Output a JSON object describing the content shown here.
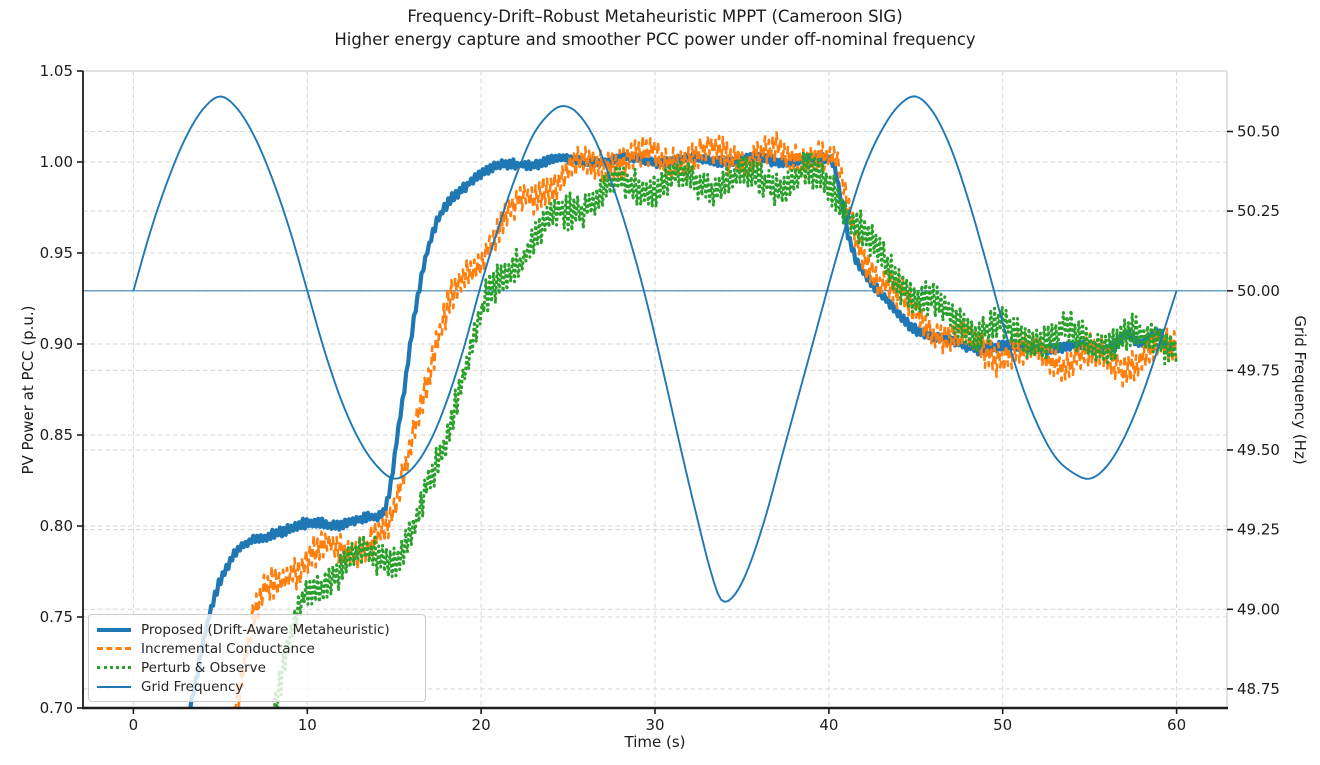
{
  "title": "Frequency-Drift–Robust Metaheuristic MPPT (Cameroon SIG)",
  "subtitle": "Higher energy capture and smoother PCC power under off-nominal frequency",
  "xlabel": "Time (s)",
  "colors": {
    "proposed": "#1f77b4",
    "incremental_conductance": "#ff7f0e",
    "perturb_observe": "#2ca02c",
    "grid_frequency": "#1f77b4",
    "gridline": "#d9d9d9",
    "spine_dark": "#1c1c1c",
    "spine_light": "#cfcfcf",
    "text": "#1c1c1c"
  },
  "chart_data": {
    "type": "line",
    "title": "Frequency-Drift–Robust Metaheuristic MPPT (Cameroon SIG)",
    "subtitle": "Higher energy capture and smoother PCC power under off-nominal frequency",
    "xlabel": "Time (s)",
    "grid": true,
    "legend_position": "lower left",
    "xlim": [
      -2.9,
      62.9
    ],
    "x_ticks": [
      0,
      10,
      20,
      30,
      40,
      50,
      60
    ],
    "x_tick_labels": [
      "0",
      "10",
      "20",
      "30",
      "40",
      "50",
      "60"
    ],
    "left_axis": {
      "label": "PV Power at PCC (p.u.)",
      "lim": [
        0.7,
        1.05
      ],
      "ticks": [
        0.7,
        0.75,
        0.8,
        0.85,
        0.9,
        0.95,
        1.0,
        1.05
      ],
      "tick_labels": [
        "0.70",
        "0.75",
        "0.80",
        "0.85",
        "0.90",
        "0.95",
        "1.00",
        "1.05"
      ]
    },
    "right_axis": {
      "label": "Grid Frequency (Hz)",
      "lim": [
        48.69,
        50.69
      ],
      "ticks": [
        48.75,
        49.0,
        49.25,
        49.5,
        49.75,
        50.0,
        50.25,
        50.5
      ],
      "tick_labels": [
        "48.75",
        "49.00",
        "49.25",
        "49.50",
        "49.75",
        "50.00",
        "50.25",
        "50.50"
      ]
    },
    "reference_line": {
      "axis": "right",
      "value": 50.0,
      "color": "#1f77b4",
      "width": 1.1,
      "opacity": 0.85
    },
    "series": [
      {
        "name": "Proposed (Drift-Aware Metaheuristic)",
        "color": "#1f77b4",
        "style": "solid",
        "width": 4.2,
        "axis": "left",
        "noise_amp": 0.0025,
        "seed": 11,
        "sample_dt": 0.11,
        "points": [
          [
            2.6,
            0.672
          ],
          [
            3.0,
            0.69
          ],
          [
            3.4,
            0.706
          ],
          [
            3.8,
            0.726
          ],
          [
            4.3,
            0.75
          ],
          [
            4.8,
            0.766
          ],
          [
            5.3,
            0.776
          ],
          [
            5.9,
            0.7845
          ],
          [
            6.6,
            0.79
          ],
          [
            7.4,
            0.794
          ],
          [
            8.2,
            0.797
          ],
          [
            9.2,
            0.799
          ],
          [
            10.5,
            0.8008
          ],
          [
            12,
            0.8022
          ],
          [
            13.5,
            0.8035
          ],
          [
            14.3,
            0.806
          ],
          [
            14.7,
            0.818
          ],
          [
            15.1,
            0.845
          ],
          [
            15.6,
            0.878
          ],
          [
            16.1,
            0.912
          ],
          [
            16.6,
            0.938
          ],
          [
            17.1,
            0.956
          ],
          [
            17.7,
            0.971
          ],
          [
            18.3,
            0.98
          ],
          [
            19,
            0.9872
          ],
          [
            19.8,
            0.9925
          ],
          [
            20.7,
            0.996
          ],
          [
            21.7,
            0.9985
          ],
          [
            23,
            1.0
          ],
          [
            25,
            1.0008
          ],
          [
            28,
            1.001
          ],
          [
            31,
            1.001
          ],
          [
            34,
            1.0012
          ],
          [
            37,
            1.001
          ],
          [
            39.5,
            1.0008
          ],
          [
            40.2,
            0.9995
          ],
          [
            40.6,
            0.985
          ],
          [
            41,
            0.966
          ],
          [
            41.4,
            0.952
          ],
          [
            42,
            0.9395
          ],
          [
            42.6,
            0.931
          ],
          [
            43.2,
            0.9245
          ],
          [
            44,
            0.9165
          ],
          [
            44.8,
            0.9105
          ],
          [
            45.6,
            0.906
          ],
          [
            46.4,
            0.9025
          ],
          [
            47.2,
            0.9002
          ],
          [
            48,
            0.899
          ],
          [
            49.5,
            0.8985
          ],
          [
            51,
            0.898
          ],
          [
            53,
            0.898
          ],
          [
            55,
            0.898
          ],
          [
            56.2,
            0.8995
          ],
          [
            57.2,
            0.9055
          ],
          [
            57.8,
            0.899
          ],
          [
            58.3,
            0.9015
          ],
          [
            58.9,
            0.9065
          ],
          [
            59.4,
            0.8995
          ],
          [
            60,
            0.9005
          ]
        ]
      },
      {
        "name": "Incremental Conductance",
        "color": "#ff7f0e",
        "style": "dashed",
        "width": 2.6,
        "axis": "left",
        "noise_amp": 0.0085,
        "seed": 23,
        "sample_dt": 0.11,
        "points": [
          [
            5.2,
            0.678
          ],
          [
            5.6,
            0.692
          ],
          [
            6.0,
            0.708
          ],
          [
            6.5,
            0.73
          ],
          [
            7.0,
            0.748
          ],
          [
            7.6,
            0.7625
          ],
          [
            8.3,
            0.7715
          ],
          [
            9.1,
            0.777
          ],
          [
            10,
            0.7812
          ],
          [
            11,
            0.7848
          ],
          [
            12,
            0.7878
          ],
          [
            13,
            0.7902
          ],
          [
            14,
            0.7928
          ],
          [
            14.6,
            0.795
          ],
          [
            15.1,
            0.812
          ],
          [
            15.6,
            0.833
          ],
          [
            16.1,
            0.8545
          ],
          [
            16.6,
            0.8735
          ],
          [
            17.1,
            0.89
          ],
          [
            17.6,
            0.9045
          ],
          [
            18.1,
            0.917
          ],
          [
            18.7,
            0.9295
          ],
          [
            19.3,
            0.94
          ],
          [
            19.9,
            0.949
          ],
          [
            20.5,
            0.9575
          ],
          [
            21.2,
            0.9655
          ],
          [
            21.9,
            0.9725
          ],
          [
            22.6,
            0.9785
          ],
          [
            23.4,
            0.9845
          ],
          [
            24.2,
            0.9895
          ],
          [
            25,
            0.9935
          ],
          [
            26,
            0.9975
          ],
          [
            27,
            1.0
          ],
          [
            28.5,
            1.002
          ],
          [
            30,
            1.0028
          ],
          [
            32,
            1.0032
          ],
          [
            34,
            1.0035
          ],
          [
            36,
            1.0035
          ],
          [
            38,
            1.0033
          ],
          [
            39.8,
            1.0025
          ],
          [
            40.5,
            0.995
          ],
          [
            41,
            0.9775
          ],
          [
            41.5,
            0.9615
          ],
          [
            42,
            0.9495
          ],
          [
            42.6,
            0.94
          ],
          [
            43.2,
            0.9325
          ],
          [
            43.9,
            0.9255
          ],
          [
            44.6,
            0.9195
          ],
          [
            45.4,
            0.9135
          ],
          [
            46.2,
            0.9085
          ],
          [
            47,
            0.9042
          ],
          [
            48,
            0.9005
          ],
          [
            49,
            0.8978
          ],
          [
            50,
            0.8958
          ],
          [
            51.5,
            0.894
          ],
          [
            53,
            0.8928
          ],
          [
            54.5,
            0.8918
          ],
          [
            56,
            0.891
          ],
          [
            57.3,
            0.8905
          ],
          [
            58.3,
            0.8925
          ],
          [
            59.2,
            0.8962
          ],
          [
            60,
            0.898
          ]
        ]
      },
      {
        "name": "Perturb & Observe",
        "color": "#2ca02c",
        "style": "dotted",
        "width": 3.0,
        "axis": "left",
        "noise_amp": 0.0092,
        "seed": 47,
        "sample_dt": 0.11,
        "points": [
          [
            7.4,
            0.678
          ],
          [
            7.8,
            0.692
          ],
          [
            8.2,
            0.705
          ],
          [
            8.7,
            0.724
          ],
          [
            9.3,
            0.746
          ],
          [
            10,
            0.7615
          ],
          [
            10.7,
            0.7695
          ],
          [
            11.5,
            0.7755
          ],
          [
            12.4,
            0.7798
          ],
          [
            13.4,
            0.7828
          ],
          [
            14.4,
            0.785
          ],
          [
            15.4,
            0.787
          ],
          [
            16,
            0.795
          ],
          [
            16.6,
            0.809
          ],
          [
            17.2,
            0.8245
          ],
          [
            17.8,
            0.8425
          ],
          [
            18.4,
            0.866
          ],
          [
            19,
            0.8875
          ],
          [
            19.6,
            0.9025
          ],
          [
            20.2,
            0.9185
          ],
          [
            20.9,
            0.9305
          ],
          [
            21.6,
            0.9415
          ],
          [
            22.3,
            0.9505
          ],
          [
            23,
            0.958
          ],
          [
            24,
            0.9665
          ],
          [
            25,
            0.9735
          ],
          [
            26,
            0.979
          ],
          [
            27,
            0.9828
          ],
          [
            28,
            0.9853
          ],
          [
            29.5,
            0.9875
          ],
          [
            31,
            0.9888
          ],
          [
            33,
            0.9898
          ],
          [
            35,
            0.9905
          ],
          [
            37,
            0.9908
          ],
          [
            39,
            0.9905
          ],
          [
            40.3,
            0.9875
          ],
          [
            40.9,
            0.977
          ],
          [
            41.5,
            0.9665
          ],
          [
            42.1,
            0.9575
          ],
          [
            42.7,
            0.9498
          ],
          [
            43.3,
            0.9435
          ],
          [
            43.9,
            0.938
          ],
          [
            44.6,
            0.9318
          ],
          [
            45.3,
            0.9263
          ],
          [
            46,
            0.9215
          ],
          [
            46.8,
            0.9168
          ],
          [
            47.6,
            0.9128
          ],
          [
            48.5,
            0.9095
          ],
          [
            49.5,
            0.907
          ],
          [
            51,
            0.9052
          ],
          [
            53,
            0.9038
          ],
          [
            55,
            0.9028
          ],
          [
            56.5,
            0.902
          ],
          [
            57.5,
            0.9028
          ],
          [
            58.5,
            0.9048
          ],
          [
            59.2,
            0.9055
          ],
          [
            59.7,
            0.901
          ],
          [
            60,
            0.8992
          ]
        ]
      },
      {
        "name": "Grid Frequency",
        "color": "#1f77b4",
        "style": "solid",
        "width": 1.9,
        "axis": "right",
        "noise_amp": 0,
        "seed": 1,
        "sample_dt": 0.2,
        "points": [
          [
            0,
            50.0
          ],
          [
            1,
            50.19
          ],
          [
            2,
            50.35
          ],
          [
            3,
            50.48
          ],
          [
            4,
            50.57
          ],
          [
            5,
            50.61
          ],
          [
            6,
            50.57
          ],
          [
            7,
            50.48
          ],
          [
            8,
            50.35
          ],
          [
            9,
            50.19
          ],
          [
            10,
            50.0
          ],
          [
            11,
            49.81
          ],
          [
            12,
            49.65
          ],
          [
            13,
            49.53
          ],
          [
            14,
            49.45
          ],
          [
            15,
            49.41
          ],
          [
            16,
            49.44
          ],
          [
            17,
            49.52
          ],
          [
            18,
            49.65
          ],
          [
            19,
            49.82
          ],
          [
            20,
            50.02
          ],
          [
            21,
            50.2
          ],
          [
            22,
            50.36
          ],
          [
            23,
            50.49
          ],
          [
            24,
            50.56
          ],
          [
            24.7,
            50.58
          ],
          [
            25.5,
            50.56
          ],
          [
            26.5,
            50.48
          ],
          [
            27.5,
            50.34
          ],
          [
            28.5,
            50.17
          ],
          [
            29.5,
            49.97
          ],
          [
            30.5,
            49.74
          ],
          [
            31.5,
            49.5
          ],
          [
            32.5,
            49.27
          ],
          [
            33.2,
            49.12
          ],
          [
            33.8,
            49.03
          ],
          [
            34.5,
            49.04
          ],
          [
            35.3,
            49.12
          ],
          [
            36.3,
            49.28
          ],
          [
            37.3,
            49.48
          ],
          [
            38.3,
            49.68
          ],
          [
            39.2,
            49.86
          ],
          [
            40,
            50.02
          ],
          [
            41,
            50.21
          ],
          [
            42,
            50.38
          ],
          [
            43,
            50.5
          ],
          [
            44,
            50.58
          ],
          [
            45,
            50.61
          ],
          [
            46,
            50.56
          ],
          [
            47,
            50.45
          ],
          [
            48,
            50.29
          ],
          [
            49,
            50.1
          ],
          [
            50,
            49.9
          ],
          [
            51,
            49.72
          ],
          [
            52,
            49.58
          ],
          [
            53,
            49.48
          ],
          [
            54,
            49.43
          ],
          [
            55,
            49.41
          ],
          [
            56,
            49.45
          ],
          [
            57,
            49.54
          ],
          [
            58,
            49.67
          ],
          [
            59,
            49.83
          ],
          [
            60,
            50.0
          ]
        ]
      }
    ]
  }
}
